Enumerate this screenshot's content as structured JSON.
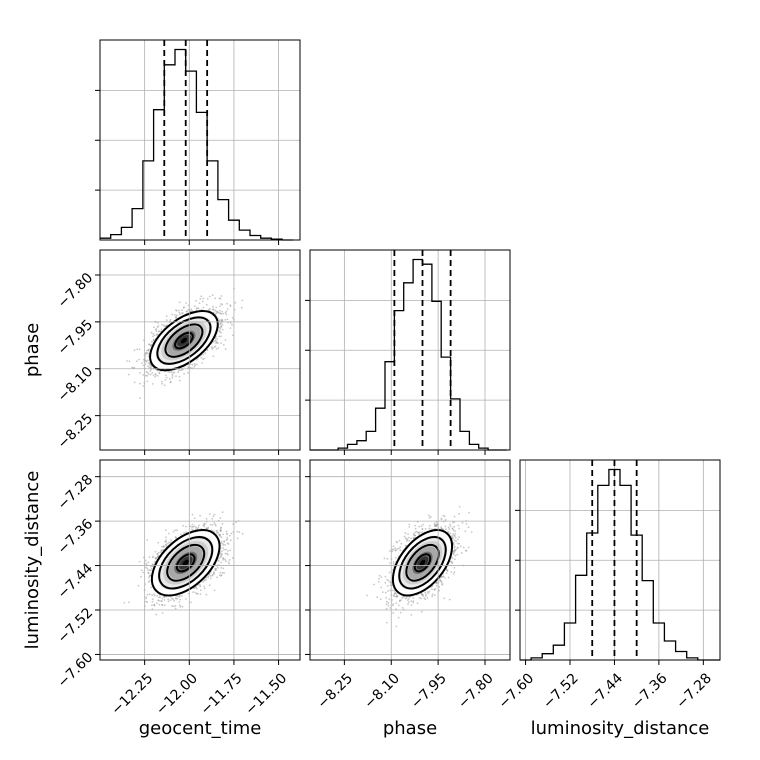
{
  "chart_data": {
    "type": "corner",
    "parameters": [
      "geocent_time",
      "phase",
      "luminosity_distance"
    ],
    "axes": {
      "geocent_time": {
        "label": "geocent_time",
        "range": [
          -12.5,
          -11.38
        ],
        "ticks": [
          -12.25,
          -12.0,
          -11.75,
          -11.5
        ],
        "tick_labels": [
          "−12.25",
          "−12.00",
          "−11.75",
          "−11.50"
        ]
      },
      "phase": {
        "label": "phase",
        "range": [
          -8.36,
          -7.72
        ],
        "ticks": [
          -8.25,
          -8.1,
          -7.95,
          -7.8
        ],
        "tick_labels": [
          "−8.25",
          "−8.10",
          "−7.95",
          "−7.80"
        ]
      },
      "luminosity_distance": {
        "label": "luminosity_distance",
        "range": [
          -7.61,
          -7.25
        ],
        "ticks": [
          -7.6,
          -7.52,
          -7.44,
          -7.36,
          -7.28
        ],
        "tick_labels": [
          "−7.60",
          "−7.52",
          "−7.44",
          "−7.36",
          "−7.28"
        ]
      }
    },
    "histograms": [
      {
        "param": "geocent_time",
        "bin_edges": [
          -12.5,
          -12.44,
          -12.38,
          -12.32,
          -12.26,
          -12.2,
          -12.14,
          -12.08,
          -12.02,
          -11.96,
          -11.9,
          -11.84,
          -11.78,
          -11.72,
          -11.66,
          -11.6,
          -11.54,
          -11.48,
          -11.42
        ],
        "counts": [
          2,
          6,
          14,
          35,
          88,
          145,
          195,
          212,
          188,
          142,
          88,
          45,
          22,
          11,
          5,
          2,
          1,
          0
        ],
        "quantiles": [
          -12.14,
          -12.02,
          -11.9
        ]
      },
      {
        "param": "phase",
        "bin_edges": [
          -8.36,
          -8.33,
          -8.3,
          -8.27,
          -8.24,
          -8.21,
          -8.18,
          -8.15,
          -8.12,
          -8.09,
          -8.06,
          -8.03,
          -8.0,
          -7.97,
          -7.94,
          -7.91,
          -7.88,
          -7.85,
          -7.82,
          -7.79,
          -7.76,
          -7.73
        ],
        "counts": [
          0,
          0,
          0,
          2,
          6,
          10,
          20,
          45,
          95,
          150,
          180,
          205,
          200,
          160,
          100,
          55,
          20,
          6,
          2,
          0,
          0
        ],
        "quantiles": [
          -8.09,
          -8.0,
          -7.91
        ]
      },
      {
        "param": "luminosity_distance",
        "bin_edges": [
          -7.61,
          -7.59,
          -7.57,
          -7.55,
          -7.53,
          -7.51,
          -7.49,
          -7.47,
          -7.45,
          -7.43,
          -7.41,
          -7.39,
          -7.37,
          -7.35,
          -7.33,
          -7.31,
          -7.29,
          -7.27,
          -7.25
        ],
        "counts": [
          0,
          2,
          6,
          14,
          35,
          80,
          120,
          165,
          180,
          165,
          118,
          75,
          35,
          18,
          8,
          2,
          0,
          0
        ],
        "quantiles": [
          -7.48,
          -7.44,
          -7.4
        ]
      }
    ],
    "joint_distributions": [
      {
        "x": "geocent_time",
        "y": "phase",
        "center": [
          -12.03,
          -8.01
        ],
        "sigma": [
          0.09,
          0.045
        ],
        "correlation": 0.55
      },
      {
        "x": "geocent_time",
        "y": "luminosity_distance",
        "center": [
          -12.02,
          -7.435
        ],
        "sigma": [
          0.09,
          0.028
        ],
        "correlation": 0.5
      },
      {
        "x": "phase",
        "y": "luminosity_distance",
        "center": [
          -8.0,
          -7.435
        ],
        "sigma": [
          0.045,
          0.028
        ],
        "correlation": 0.5
      }
    ],
    "grid": true
  }
}
